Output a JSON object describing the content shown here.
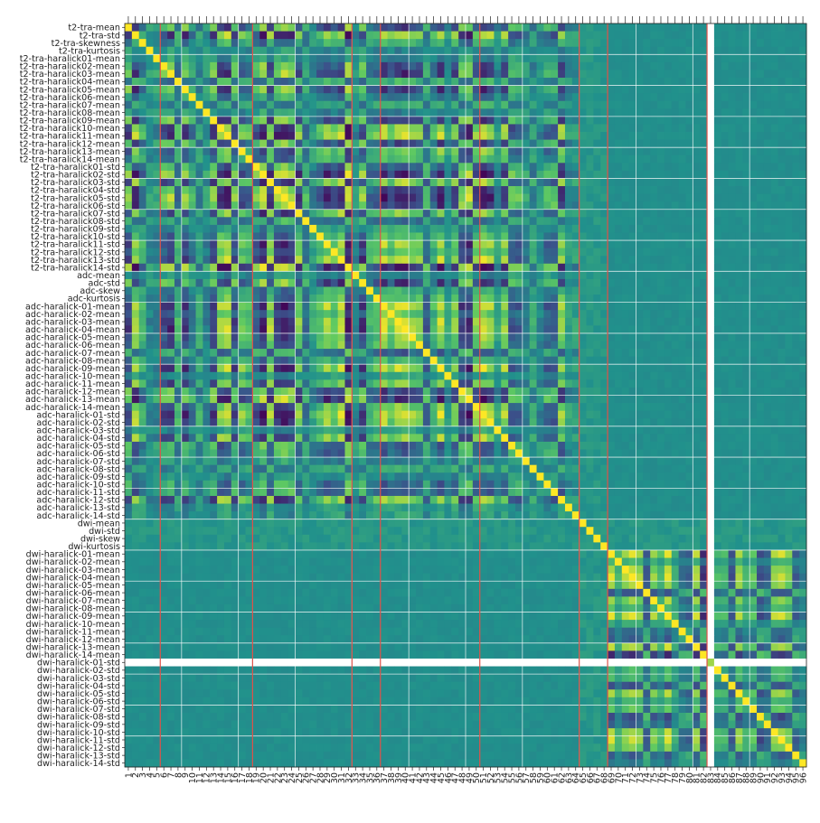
{
  "chart_data": {
    "type": "heatmap",
    "title": "",
    "xlabel": "",
    "ylabel": "",
    "row_labels": [
      "t2-tra-mean",
      "t2-tra-std",
      "t2-tra-skewness",
      "t2-tra-kurtosis",
      "t2-tra-haralick01-mean",
      "t2-tra-haralick02-mean",
      "t2-tra-haralick03-mean",
      "t2-tra-haralick04-mean",
      "t2-tra-haralick05-mean",
      "t2-tra-haralick06-mean",
      "t2-tra-haralick07-mean",
      "t2-tra-haralick08-mean",
      "t2-tra-haralick09-mean",
      "t2-tra-haralick10-mean",
      "t2-tra-haralick11-mean",
      "t2-tra-haralick12-mean",
      "t2-tra-haralick13-mean",
      "t2-tra-haralick14-mean",
      "t2-tra-haralick01-std",
      "t2-tra-haralick02-std",
      "t2-tra-haralick03-std",
      "t2-tra-haralick04-std",
      "t2-tra-haralick05-std",
      "t2-tra-haralick06-std",
      "t2-tra-haralick07-std",
      "t2-tra-haralick08-std",
      "t2-tra-haralick09-std",
      "t2-tra-haralick10-std",
      "t2-tra-haralick11-std",
      "t2-tra-haralick12-std",
      "t2-tra-haralick13-std",
      "t2-tra-haralick14-std",
      "adc-mean",
      "adc-std",
      "adc-skew",
      "adc-kurtosis",
      "adc-haralick-01-mean",
      "adc-haralick-02-mean",
      "adc-haralick-03-mean",
      "adc-haralick-04-mean",
      "adc-haralick-05-mean",
      "adc-haralick-06-mean",
      "adc-haralick-07-mean",
      "adc-haralick-08-mean",
      "adc-haralick-09-mean",
      "adc-haralick-10-mean",
      "adc-haralick-11-mean",
      "adc-haralick-12-mean",
      "adc-haralick-13-mean",
      "adc-haralick-14-mean",
      "adc-haralick-01-std",
      "adc-haralick-02-std",
      "adc-haralick-03-std",
      "adc-haralick-04-std",
      "adc-haralick-05-std",
      "adc-haralick-06-std",
      "adc-haralick-07-std",
      "adc-haralick-08-std",
      "adc-haralick-09-std",
      "adc-haralick-10-std",
      "adc-haralick-11-std",
      "adc-haralick-12-std",
      "adc-haralick-13-std",
      "adc-haralick-14-std",
      "dwi-mean",
      "dwi-std",
      "dwi-skew",
      "dwi-kurtosis",
      "dwi-haralick-01-mean",
      "dwi-haralick-02-mean",
      "dwi-haralick-03-mean",
      "dwi-haralick-04-mean",
      "dwi-haralick-05-mean",
      "dwi-haralick-06-mean",
      "dwi-haralick-07-mean",
      "dwi-haralick-08-mean",
      "dwi-haralick-09-mean",
      "dwi-haralick-10-mean",
      "dwi-haralick-11-mean",
      "dwi-haralick-12-mean",
      "dwi-haralick-13-mean",
      "dwi-haralick-14-mean",
      "dwi-haralick-01-std",
      "dwi-haralick-02-std",
      "dwi-haralick-03-std",
      "dwi-haralick-04-std",
      "dwi-haralick-05-std",
      "dwi-haralick-06-std",
      "dwi-haralick-07-std",
      "dwi-haralick-08-std",
      "dwi-haralick-09-std",
      "dwi-haralick-10-std",
      "dwi-haralick-11-std",
      "dwi-haralick-12-std",
      "dwi-haralick-13-std",
      "dwi-haralick-14-std"
    ],
    "col_labels": [
      "1",
      "2",
      "3",
      "4",
      "5",
      "6",
      "7",
      "8",
      "9",
      "10",
      "11",
      "12",
      "13",
      "14",
      "15",
      "16",
      "17",
      "18",
      "19",
      "20",
      "21",
      "22",
      "23",
      "24",
      "25",
      "26",
      "27",
      "28",
      "29",
      "30",
      "31",
      "32",
      "33",
      "34",
      "35",
      "36",
      "37",
      "38",
      "39",
      "40",
      "41",
      "42",
      "43",
      "44",
      "45",
      "46",
      "47",
      "48",
      "49",
      "50",
      "51",
      "52",
      "53",
      "54",
      "55",
      "56",
      "57",
      "58",
      "59",
      "60",
      "61",
      "62",
      "63",
      "64",
      "65",
      "66",
      "67",
      "68",
      "69",
      "70",
      "71",
      "72",
      "73",
      "74",
      "75",
      "76",
      "77",
      "78",
      "79",
      "80",
      "81",
      "82",
      "83",
      "84",
      "85",
      "86",
      "87",
      "88",
      "89",
      "90",
      "91",
      "92",
      "93",
      "94",
      "95",
      "96"
    ],
    "value_range": [
      -1,
      1
    ],
    "colormap": "viridis",
    "colormap_stops": [
      "#440154",
      "#3b528b",
      "#21918c",
      "#5ec962",
      "#fde725"
    ],
    "grid": true,
    "grid_color": "#ffffff",
    "marker_line_color": "#e0524a",
    "marker_line_columns": [
      5,
      18,
      32,
      36,
      50,
      64,
      68,
      82
    ],
    "blank_row": 82,
    "blank_column": 82,
    "block_structure": [
      {
        "rows": [
          1,
          32
        ],
        "level": "mixed strong correlations"
      },
      {
        "rows": [
          33,
          64
        ],
        "level": "mixed strong correlations"
      },
      {
        "rows": [
          65,
          68
        ],
        "level": "weak"
      },
      {
        "rows": [
          69,
          96
        ],
        "level": "strong block in columns 69-96"
      }
    ]
  }
}
